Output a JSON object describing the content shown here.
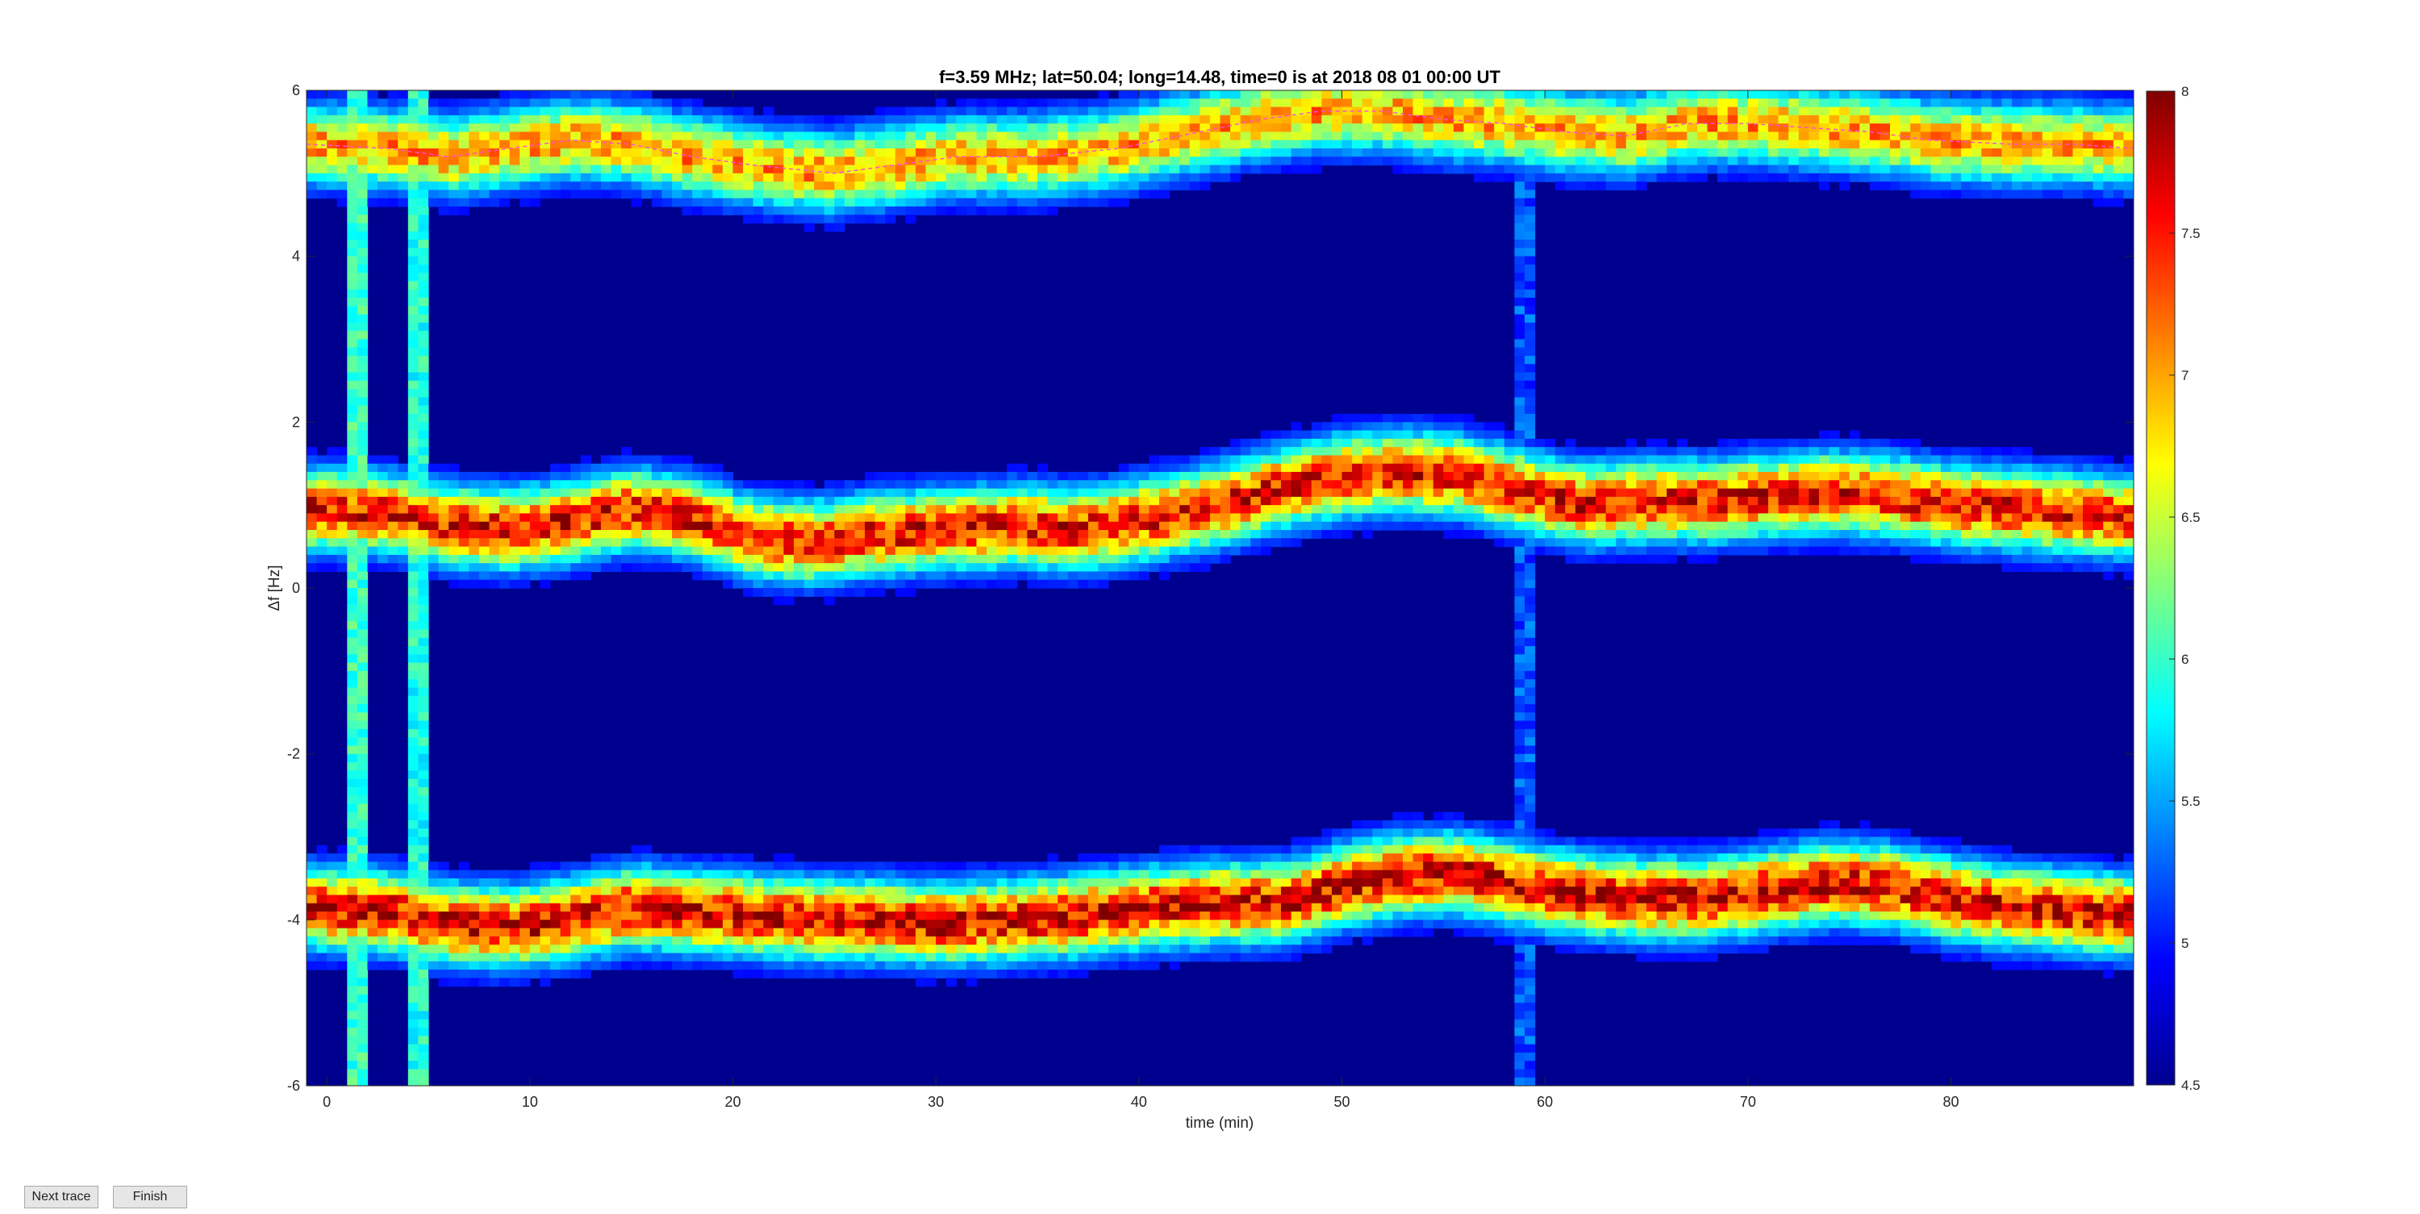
{
  "chart_data": {
    "type": "heatmap",
    "title": "f=3.59 MHz;  lat=50.04; long=14.48, time=0 is at 2018 08 01 00:00 UT",
    "xlabel": "time (min)",
    "ylabel": "Δf [Hz]",
    "xlim": [
      -1,
      89
    ],
    "ylim": [
      -6,
      6
    ],
    "xticks": [
      0,
      10,
      20,
      30,
      40,
      50,
      60,
      70,
      80
    ],
    "yticks": [
      -6,
      -4,
      -2,
      0,
      2,
      4,
      6
    ],
    "colorbar": {
      "clim": [
        4.5,
        8
      ],
      "ticks": [
        "4.5",
        "5",
        "5.5",
        "6",
        "6.5",
        "7",
        "7.5",
        "8"
      ],
      "colormap": "jet"
    },
    "grid": false,
    "background_level": 4.7,
    "traces": [
      {
        "name": "",
        "peak_level": 7.2,
        "x": [
          -1,
          3,
          6,
          9,
          12,
          15,
          18,
          21,
          25,
          28,
          31,
          35,
          39,
          42,
          46,
          49,
          52,
          55,
          58,
          61,
          64,
          67,
          70,
          73,
          76,
          79,
          83,
          86,
          89
        ],
        "y": [
          5.35,
          5.3,
          5.2,
          5.3,
          5.4,
          5.35,
          5.2,
          5.1,
          5.0,
          5.1,
          5.2,
          5.2,
          5.3,
          5.45,
          5.65,
          5.75,
          5.75,
          5.65,
          5.6,
          5.5,
          5.45,
          5.6,
          5.6,
          5.55,
          5.5,
          5.4,
          5.35,
          5.35,
          5.3
        ]
      },
      {
        "name": "",
        "peak_level": 7.8,
        "x": [
          -1,
          3,
          6,
          9,
          12,
          15,
          18,
          21,
          24,
          27,
          30,
          34,
          37,
          41,
          44,
          47,
          50,
          53,
          56,
          59,
          62,
          65,
          68,
          71,
          74,
          77,
          80,
          83,
          86,
          89
        ],
        "y": [
          0.95,
          0.9,
          0.75,
          0.7,
          0.8,
          0.95,
          0.85,
          0.6,
          0.55,
          0.65,
          0.7,
          0.75,
          0.7,
          0.85,
          1.0,
          1.2,
          1.35,
          1.4,
          1.35,
          1.15,
          1.0,
          1.05,
          1.05,
          1.1,
          1.15,
          1.1,
          1.0,
          0.95,
          0.9,
          0.85
        ]
      },
      {
        "name": "",
        "peak_level": 7.9,
        "x": [
          -1,
          3,
          6,
          9,
          12,
          15,
          18,
          21,
          24,
          27,
          30,
          34,
          37,
          41,
          44,
          47,
          50,
          53,
          56,
          59,
          62,
          65,
          68,
          71,
          74,
          77,
          80,
          83,
          86,
          89
        ],
        "y": [
          -3.85,
          -3.9,
          -4.05,
          -4.1,
          -4.0,
          -3.85,
          -3.9,
          -3.95,
          -4.0,
          -4.0,
          -4.05,
          -4.0,
          -3.95,
          -3.85,
          -3.8,
          -3.8,
          -3.6,
          -3.45,
          -3.45,
          -3.6,
          -3.7,
          -3.75,
          -3.75,
          -3.65,
          -3.55,
          -3.6,
          -3.75,
          -3.85,
          -3.9,
          -3.95
        ]
      }
    ],
    "streaks": [
      {
        "x": 1.5,
        "level": 6.1
      },
      {
        "x": 4.5,
        "level": 6.0
      },
      {
        "x": 58.9,
        "level": 5.3
      }
    ]
  },
  "ui": {
    "next_button": "Next trace",
    "finish_button": "Finish"
  }
}
